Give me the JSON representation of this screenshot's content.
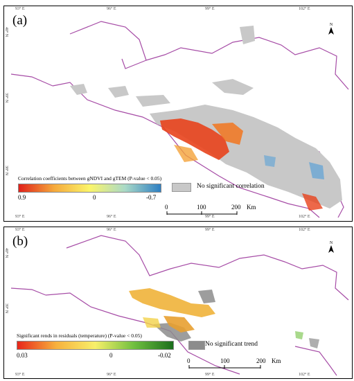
{
  "panel_a": {
    "label": "(a)",
    "ticks_top": [
      "93° E",
      "96° E",
      "99° E",
      "102° E"
    ],
    "ticks_bottom": [
      "93° E",
      "96° E",
      "99° E",
      "102° E"
    ],
    "ticks_left": [
      "40° N",
      "39° N",
      "38° N"
    ],
    "north": "N",
    "legend_title": "Correlation coefficients between gNDVI and gTEM (P-value < 0.05)",
    "ramp_min": "0.9",
    "ramp_mid": "0",
    "ramp_max": "-0.7",
    "ramp_colors": [
      "#e0201a",
      "#f5a93b",
      "#fbf56a",
      "#a9d9c7",
      "#2e7fc2"
    ],
    "no_sig_label": "No significant correlation",
    "no_sig_color": "#c8c8c8",
    "scale_labels": [
      "0",
      "100",
      "200",
      "Km"
    ]
  },
  "panel_b": {
    "label": "(b)",
    "ticks_top": [
      "93° E",
      "96° E",
      "99° E",
      "102° E"
    ],
    "ticks_bottom": [
      "93° E",
      "96° E",
      "99° E",
      "102° E"
    ],
    "ticks_left": [
      "40° N",
      "39° N"
    ],
    "north": "N",
    "legend_title": "Significant rends in residuals (temperature) (P-value < 0.05)",
    "ramp_min": "0.03",
    "ramp_mid": "0",
    "ramp_max": "-0.02",
    "ramp_colors": [
      "#e8261a",
      "#f7b13d",
      "#f8f06a",
      "#6fbf3f",
      "#1b6e1c"
    ],
    "no_sig_label": "No significant trend",
    "no_sig_color": "#8c8c8c",
    "scale_labels": [
      "0",
      "100",
      "200",
      "Km"
    ]
  }
}
